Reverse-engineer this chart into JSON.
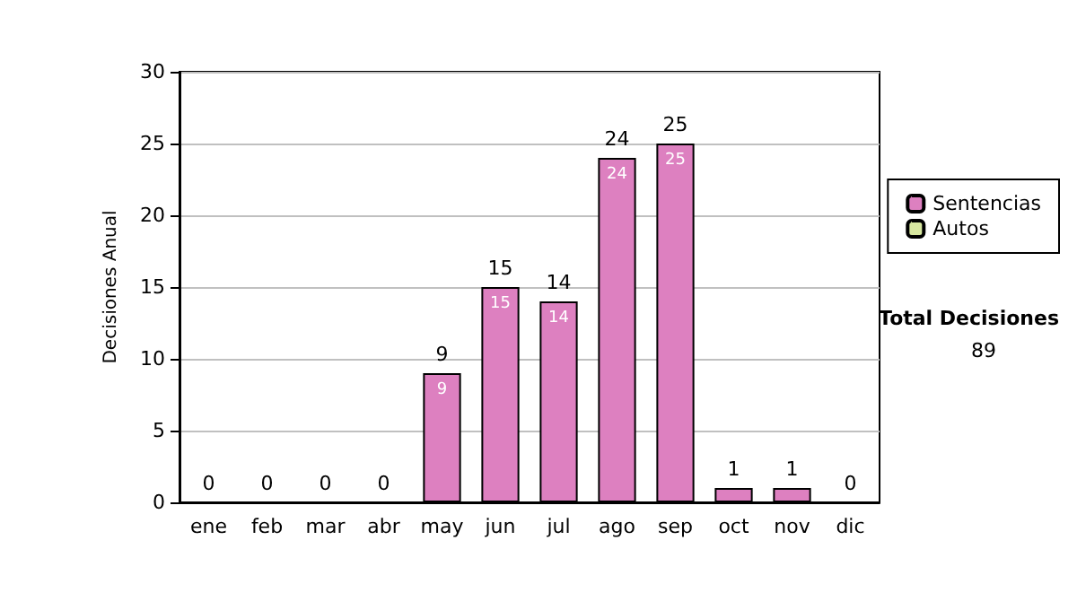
{
  "chart_data": {
    "type": "bar",
    "ylabel": "Decisiones Anual",
    "categories": [
      "ene",
      "feb",
      "mar",
      "abr",
      "may",
      "jun",
      "jul",
      "ago",
      "sep",
      "oct",
      "nov",
      "dic"
    ],
    "stacked": true,
    "series": [
      {
        "name": "Sentencias",
        "color": "#dd80c0",
        "values": [
          0,
          0,
          0,
          0,
          9,
          15,
          14,
          24,
          25,
          1,
          1,
          0
        ],
        "value_labels": [
          null,
          null,
          null,
          null,
          "9",
          "15",
          "14",
          "24",
          "25",
          null,
          null,
          null
        ]
      },
      {
        "name": "Autos",
        "color": "#d8e8a0",
        "values": [
          0,
          0,
          0,
          0,
          0,
          0,
          0,
          0,
          0,
          0,
          0,
          0
        ]
      }
    ],
    "totals": [
      "0",
      "0",
      "0",
      "0",
      "9",
      "15",
      "14",
      "24",
      "25",
      "1",
      "1",
      "0"
    ],
    "ylim": [
      0,
      30
    ],
    "yticks": [
      0,
      5,
      10,
      15,
      20,
      25,
      30
    ],
    "grid": "y",
    "legend": "right",
    "annotations": [
      "Total Decisiones",
      "89"
    ]
  }
}
